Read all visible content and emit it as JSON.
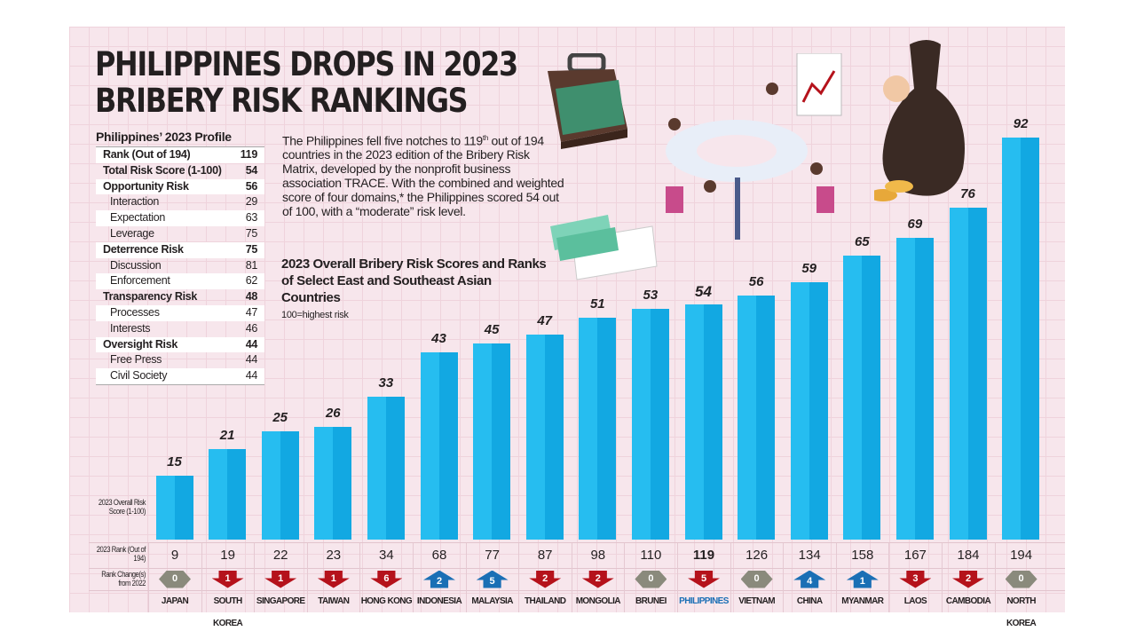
{
  "title": "PHILIPPINES DROPS IN 2023 BRIBERY RISK RANKINGS",
  "profile": {
    "heading": "Philippines’ 2023 Profile",
    "rows": [
      {
        "label": "Rank (Out of 194)",
        "value": "119",
        "level": "b"
      },
      {
        "label": "Total Risk Score (1-100)",
        "value": "54",
        "level": "b"
      },
      {
        "label": "Opportunity Risk",
        "value": "56",
        "level": "b"
      },
      {
        "label": "Interaction",
        "value": "29",
        "level": "s"
      },
      {
        "label": "Expectation",
        "value": "63",
        "level": "s"
      },
      {
        "label": "Leverage",
        "value": "75",
        "level": "s"
      },
      {
        "label": "Deterrence Risk",
        "value": "75",
        "level": "b"
      },
      {
        "label": "Discussion",
        "value": "81",
        "level": "s"
      },
      {
        "label": "Enforcement",
        "value": "62",
        "level": "s"
      },
      {
        "label": "Transparency Risk",
        "value": "48",
        "level": "b"
      },
      {
        "label": "Processes",
        "value": "47",
        "level": "s"
      },
      {
        "label": "Interests",
        "value": "46",
        "level": "s"
      },
      {
        "label": "Oversight Risk",
        "value": "44",
        "level": "b"
      },
      {
        "label": "Free Press",
        "value": "44",
        "level": "s"
      },
      {
        "label": "Civil Society",
        "value": "44",
        "level": "s"
      }
    ]
  },
  "intro": {
    "p1": "The Philippines fell five notches to 119",
    "sup": "th",
    "p2": " out of 194 countries in the 2023 edition of the Bribery Risk Matrix, developed by the nonprofit business association TRACE. With the combined and weighted score of four domains,* the Philippines scored 54 out of 100, with a “moderate” risk level."
  },
  "chart_data": {
    "type": "bar",
    "title": "2023 Overall Bribery Risk Scores and Ranks of Select East and Southeast Asian Countries",
    "subtitle": "100=highest risk",
    "row_labels": {
      "score": "2023 Overall Risk Score (1-100)",
      "rank": "2023 Rank (Out of 194)",
      "change": "Rank Change(s) from 2022"
    },
    "ylim": [
      0,
      100
    ],
    "categories": [
      "JAPAN",
      "SOUTH KOREA",
      "SINGAPORE",
      "TAIWAN",
      "HONG KONG",
      "INDONESIA",
      "MALAYSIA",
      "THAILAND",
      "MONGOLIA",
      "BRUNEI",
      "PHILIPPINES",
      "VIETNAM",
      "CHINA",
      "MYANMAR",
      "LAOS",
      "CAMBODIA",
      "NORTH KOREA"
    ],
    "values": [
      15,
      21,
      25,
      26,
      33,
      43,
      45,
      47,
      51,
      53,
      54,
      56,
      59,
      65,
      69,
      76,
      92
    ],
    "ranks": [
      9,
      19,
      22,
      23,
      34,
      68,
      77,
      87,
      98,
      110,
      119,
      126,
      134,
      158,
      167,
      184,
      194
    ],
    "rank_changes": [
      {
        "dir": "zero",
        "n": "0"
      },
      {
        "dir": "down",
        "n": "1"
      },
      {
        "dir": "down",
        "n": "1"
      },
      {
        "dir": "down",
        "n": "1"
      },
      {
        "dir": "down",
        "n": "6"
      },
      {
        "dir": "up",
        "n": "2"
      },
      {
        "dir": "up",
        "n": "5"
      },
      {
        "dir": "down",
        "n": "2"
      },
      {
        "dir": "down",
        "n": "2"
      },
      {
        "dir": "zero",
        "n": "0"
      },
      {
        "dir": "down",
        "n": "5"
      },
      {
        "dir": "zero",
        "n": "0"
      },
      {
        "dir": "up",
        "n": "4"
      },
      {
        "dir": "up",
        "n": "1"
      },
      {
        "dir": "down",
        "n": "3"
      },
      {
        "dir": "down",
        "n": "2"
      },
      {
        "dir": "zero",
        "n": "0"
      }
    ],
    "highlight": "PHILIPPINES",
    "colors": {
      "bar": "#1ab0e8",
      "highlight": "#1a6fb5",
      "down": "#b5121b",
      "up": "#1a6fb5",
      "zero": "#8a8a7c"
    }
  }
}
